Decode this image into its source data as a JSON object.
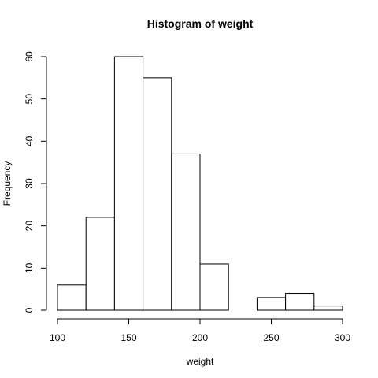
{
  "chart_data": {
    "type": "bar",
    "title": "Histogram of weight",
    "xlabel": "weight",
    "ylabel": "Frequency",
    "bins": [
      {
        "from": 100,
        "to": 120,
        "count": 6
      },
      {
        "from": 120,
        "to": 140,
        "count": 22
      },
      {
        "from": 140,
        "to": 160,
        "count": 60
      },
      {
        "from": 160,
        "to": 180,
        "count": 55
      },
      {
        "from": 180,
        "to": 200,
        "count": 37
      },
      {
        "from": 200,
        "to": 220,
        "count": 11
      },
      {
        "from": 220,
        "to": 240,
        "count": 0
      },
      {
        "from": 240,
        "to": 260,
        "count": 3
      },
      {
        "from": 260,
        "to": 280,
        "count": 4
      },
      {
        "from": 280,
        "to": 300,
        "count": 1
      }
    ],
    "xticks": [
      100,
      150,
      200,
      250,
      300
    ],
    "yticks": [
      0,
      10,
      20,
      30,
      40,
      50,
      60
    ],
    "xlim": [
      100,
      300
    ],
    "ylim": [
      0,
      60
    ],
    "grid": false,
    "legend": "none",
    "colors": {
      "bar_fill": "#ffffff",
      "bar_stroke": "#000000"
    }
  }
}
